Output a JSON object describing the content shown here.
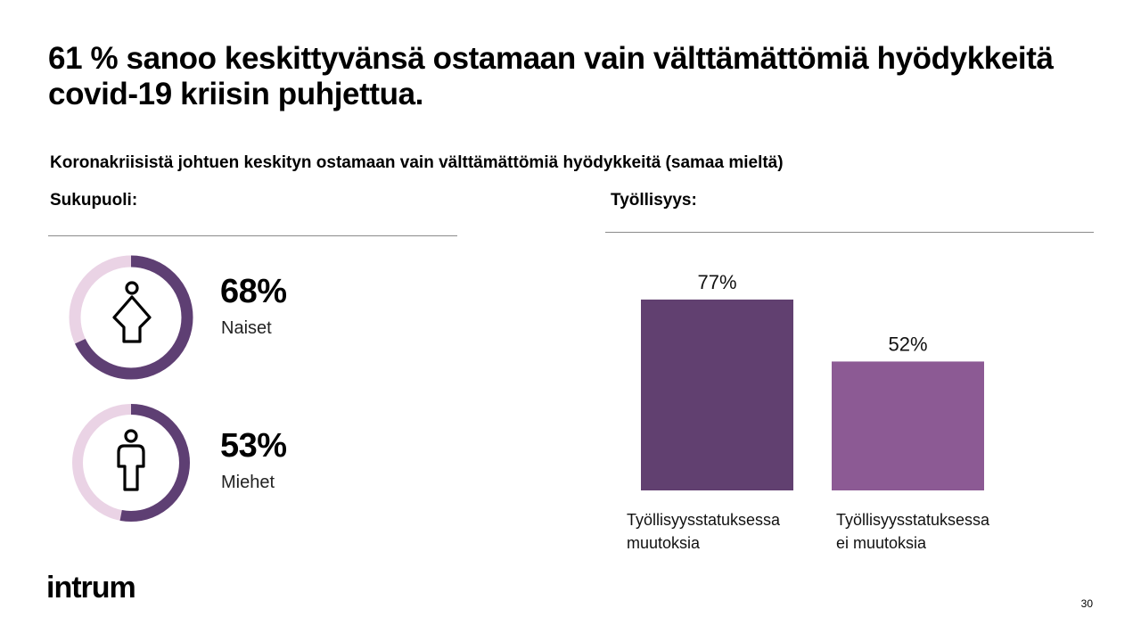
{
  "page": {
    "title": "61 % sanoo keskittyvänsä ostamaan vain välttämättömiä hyödykkeitä covid-19 kriisin puhjettua.",
    "subtitle": "Koronakriisistä johtuen keskityn ostamaan vain välttämättömiä hyödykkeitä (samaa mieltä)",
    "logo": "intrum",
    "page_number": "30"
  },
  "gender": {
    "heading": "Sukupuoli:",
    "items": [
      {
        "value_label": "68%",
        "name": "Naiset",
        "value": 0.68,
        "icon": "woman-icon"
      },
      {
        "value_label": "53%",
        "name": "Miehet",
        "value": 0.53,
        "icon": "man-icon"
      }
    ],
    "colors": {
      "filled": "#5e3f73",
      "track": "#ead3e5"
    }
  },
  "employment": {
    "heading": "Työllisyys:"
  },
  "chart_data": {
    "type": "bar",
    "categories": [
      "Työllisyysstatuksessa muutoksia",
      "Työllisyysstatuksessa ei muutoksia"
    ],
    "category_lines": [
      [
        "Työllisyysstatuksessa",
        "muutoksia"
      ],
      [
        "Työllisyysstatuksessa",
        "ei muutoksia"
      ]
    ],
    "values": [
      77,
      52
    ],
    "value_labels": [
      "77%",
      "52%"
    ],
    "colors": [
      "#614070",
      "#8c5a94"
    ],
    "ylim": [
      0,
      100
    ],
    "grid": false
  }
}
